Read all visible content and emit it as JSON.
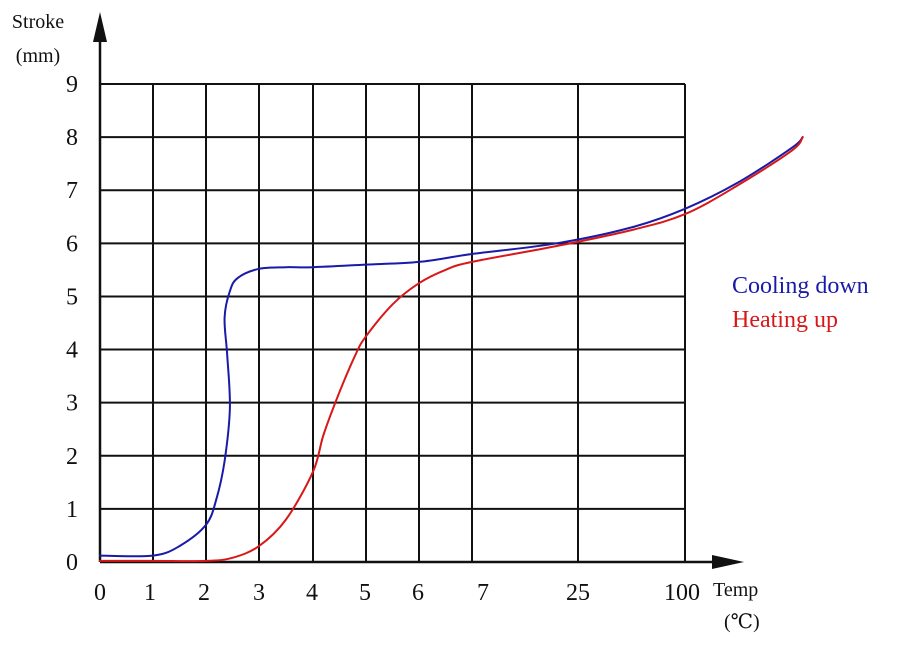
{
  "chart_data": {
    "type": "line",
    "ylabel": "Stroke",
    "ylabel_unit": "(mm)",
    "xlabel": "Temp",
    "xlabel_unit": "(℃)",
    "x_tick_labels": [
      "0",
      "1",
      "2",
      "3",
      "4",
      "5",
      "6",
      "7",
      "25",
      "100"
    ],
    "y_tick_labels": [
      "0",
      "1",
      "2",
      "3",
      "4",
      "5",
      "6",
      "7",
      "8",
      "9"
    ],
    "ylim": [
      0,
      9
    ],
    "grid": true,
    "legend_position": "right",
    "series": [
      {
        "name": "Cooling  down",
        "color": "#1a1aa8",
        "points": [
          [
            0,
            0.12
          ],
          [
            1,
            0.12
          ],
          [
            1.5,
            0.3
          ],
          [
            2,
            0.7
          ],
          [
            2.2,
            1.2
          ],
          [
            2.35,
            1.9
          ],
          [
            2.45,
            2.9
          ],
          [
            2.4,
            3.9
          ],
          [
            2.35,
            4.6
          ],
          [
            2.45,
            5.1
          ],
          [
            2.6,
            5.35
          ],
          [
            3,
            5.52
          ],
          [
            3.5,
            5.55
          ],
          [
            4,
            5.55
          ],
          [
            5,
            5.6
          ],
          [
            6,
            5.65
          ],
          [
            7,
            5.8
          ],
          [
            7.8,
            6.0
          ],
          [
            8.5,
            6.3
          ],
          [
            9,
            6.65
          ],
          [
            9.5,
            7.15
          ],
          [
            10,
            7.8
          ],
          [
            10.1,
            8.0
          ]
        ]
      },
      {
        "name": "Heating  up",
        "color": "#d81818",
        "points": [
          [
            0,
            0.02
          ],
          [
            1,
            0.02
          ],
          [
            2,
            0.02
          ],
          [
            2.5,
            0.08
          ],
          [
            3,
            0.3
          ],
          [
            3.5,
            0.8
          ],
          [
            4,
            1.7
          ],
          [
            4.2,
            2.4
          ],
          [
            4.5,
            3.2
          ],
          [
            4.8,
            3.9
          ],
          [
            5,
            4.25
          ],
          [
            5.5,
            4.85
          ],
          [
            6,
            5.25
          ],
          [
            6.5,
            5.5
          ],
          [
            7,
            5.65
          ],
          [
            7.8,
            5.95
          ],
          [
            8.5,
            6.25
          ],
          [
            9,
            6.55
          ],
          [
            9.5,
            7.1
          ],
          [
            10,
            7.75
          ],
          [
            10.1,
            8.0
          ]
        ]
      }
    ]
  }
}
